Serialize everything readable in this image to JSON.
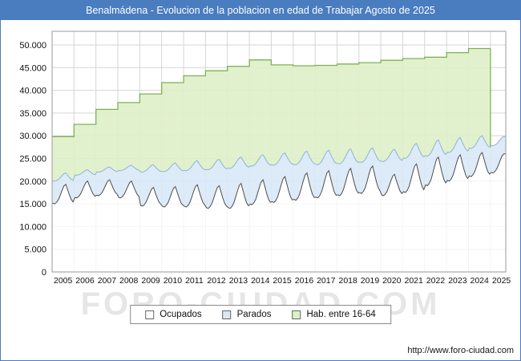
{
  "title": "Benalmádena - Evolucion de la poblacion en edad de Trabajar Agosto de 2025",
  "watermark": "FORO-CIUDAD.COM",
  "footer": {
    "url": "http://www.foro-ciudad.com"
  },
  "colors": {
    "titlebar": "#4a7cc0",
    "grid": "#d6d6d6",
    "frame": "#9a9a9a"
  },
  "chart_data": {
    "type": "area",
    "title": "Benalmádena - Evolucion de la poblacion en edad de Trabajar Agosto de 2025",
    "x_tick_labels": [
      "2005",
      "2006",
      "2007",
      "2008",
      "2009",
      "2010",
      "2011",
      "2012",
      "2013",
      "2014",
      "2015",
      "2016",
      "2017",
      "2018",
      "2019",
      "2020",
      "2021",
      "2022",
      "2023",
      "2024",
      "2025"
    ],
    "y_tick_labels": [
      "0",
      "5.000",
      "10.000",
      "15.000",
      "20.000",
      "25.000",
      "30.000",
      "35.000",
      "40.000",
      "45.000",
      "50.000"
    ],
    "y_tick_step": 5000,
    "ylim": [
      0,
      53000
    ],
    "grid": true,
    "legend_position": "bottom",
    "data_end": "Agosto 2025",
    "seasonal_shape": [
      0.03,
      0,
      0.08,
      0.22,
      0.45,
      0.7,
      0.92,
      1,
      0.72,
      0.45,
      0.22,
      0.1
    ],
    "series": [
      {
        "name": "Ocupados",
        "fill": "#ffffff",
        "stroke": "#4d4d4d"
      },
      {
        "name": "Parados",
        "fill": "#d9e8f6",
        "stroke": "#8fb4d4"
      },
      {
        "name": "Hab. entre 16-64",
        "fill": "#dff0c8",
        "stroke": "#7cb254"
      }
    ],
    "years": [
      {
        "year": 2005,
        "months": 12,
        "hab_16_64": 29800,
        "ocupados_min": 15000,
        "ocupados_max": 19300,
        "parados_summer": 2500,
        "parados_winter": 5000
      },
      {
        "year": 2006,
        "months": 12,
        "hab_16_64": 32500,
        "ocupados_min": 16300,
        "ocupados_max": 20000,
        "parados_summer": 2500,
        "parados_winter": 5000
      },
      {
        "year": 2007,
        "months": 12,
        "hab_16_64": 35800,
        "ocupados_min": 16800,
        "ocupados_max": 20300,
        "parados_summer": 2800,
        "parados_winter": 5200
      },
      {
        "year": 2008,
        "months": 12,
        "hab_16_64": 37300,
        "ocupados_min": 16300,
        "ocupados_max": 20000,
        "parados_summer": 3500,
        "parados_winter": 6000
      },
      {
        "year": 2009,
        "months": 12,
        "hab_16_64": 39200,
        "ocupados_min": 14500,
        "ocupados_max": 18600,
        "parados_summer": 5000,
        "parados_winter": 7500
      },
      {
        "year": 2010,
        "months": 12,
        "hab_16_64": 41700,
        "ocupados_min": 14300,
        "ocupados_max": 18800,
        "parados_summer": 5200,
        "parados_winter": 7800
      },
      {
        "year": 2011,
        "months": 12,
        "hab_16_64": 43200,
        "ocupados_min": 14300,
        "ocupados_max": 19200,
        "parados_summer": 5300,
        "parados_winter": 8000
      },
      {
        "year": 2012,
        "months": 12,
        "hab_16_64": 44300,
        "ocupados_min": 14000,
        "ocupados_max": 19000,
        "parados_summer": 5800,
        "parados_winter": 8500
      },
      {
        "year": 2013,
        "months": 12,
        "hab_16_64": 45300,
        "ocupados_min": 14000,
        "ocupados_max": 19500,
        "parados_summer": 5800,
        "parados_winter": 8800
      },
      {
        "year": 2014,
        "months": 12,
        "hab_16_64": 46700,
        "ocupados_min": 14800,
        "ocupados_max": 20300,
        "parados_summer": 5500,
        "parados_winter": 8500
      },
      {
        "year": 2015,
        "months": 12,
        "hab_16_64": 45600,
        "ocupados_min": 15300,
        "ocupados_max": 21000,
        "parados_summer": 5200,
        "parados_winter": 8200
      },
      {
        "year": 2016,
        "months": 12,
        "hab_16_64": 45400,
        "ocupados_min": 15800,
        "ocupados_max": 21800,
        "parados_summer": 4800,
        "parados_winter": 7800
      },
      {
        "year": 2017,
        "months": 12,
        "hab_16_64": 45500,
        "ocupados_min": 16300,
        "ocupados_max": 22300,
        "parados_summer": 4500,
        "parados_winter": 7300
      },
      {
        "year": 2018,
        "months": 12,
        "hab_16_64": 45800,
        "ocupados_min": 16800,
        "ocupados_max": 22800,
        "parados_summer": 4300,
        "parados_winter": 7000
      },
      {
        "year": 2019,
        "months": 12,
        "hab_16_64": 46100,
        "ocupados_min": 17300,
        "ocupados_max": 23300,
        "parados_summer": 4000,
        "parados_winter": 6800
      },
      {
        "year": 2020,
        "months": 12,
        "hab_16_64": 46600,
        "ocupados_min": 16800,
        "ocupados_max": 21500,
        "parados_summer": 5500,
        "parados_winter": 7500
      },
      {
        "year": 2021,
        "months": 12,
        "hab_16_64": 47000,
        "ocupados_min": 17500,
        "ocupados_max": 23800,
        "parados_summer": 4500,
        "parados_winter": 7500
      },
      {
        "year": 2022,
        "months": 12,
        "hab_16_64": 47300,
        "ocupados_min": 19000,
        "ocupados_max": 25300,
        "parados_summer": 3800,
        "parados_winter": 6500
      },
      {
        "year": 2023,
        "months": 12,
        "hab_16_64": 48300,
        "ocupados_min": 20000,
        "ocupados_max": 25800,
        "parados_summer": 3800,
        "parados_winter": 6300
      },
      {
        "year": 2024,
        "months": 12,
        "hab_16_64": 49200,
        "ocupados_min": 21000,
        "ocupados_max": 26300,
        "parados_summer": 3700,
        "parados_winter": 6200
      },
      {
        "year": 2025,
        "months": 8,
        "hab_16_64": null,
        "ocupados_min": 21800,
        "ocupados_max": 26000,
        "parados_summer": 3800,
        "parados_winter": 6000
      }
    ]
  }
}
